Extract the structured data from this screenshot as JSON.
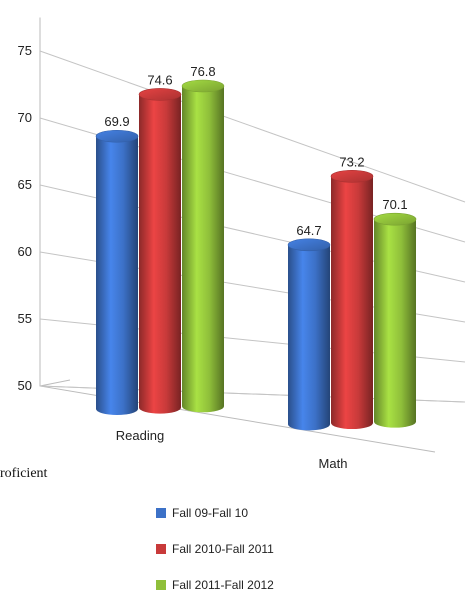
{
  "stray_text": "roficient",
  "chart_data": {
    "type": "bar",
    "title": "",
    "xlabel": "",
    "ylabel": "",
    "categories": [
      "Reading",
      "Math"
    ],
    "ylim": [
      50,
      77
    ],
    "yticks": [
      50,
      55,
      60,
      65,
      70,
      75
    ],
    "series": [
      {
        "name": "Fall 09-Fall 10",
        "values": [
          69.9,
          64.7
        ],
        "color": "#3c71c7"
      },
      {
        "name": "Fall 2010-Fall 2011",
        "values": [
          74.6,
          73.2
        ],
        "color": "#c83a3a"
      },
      {
        "name": "Fall 2011-Fall 2012",
        "values": [
          76.8,
          70.1
        ],
        "color": "#8fbf3a"
      }
    ],
    "grid": true,
    "legend": "bottom",
    "style": "3d-cylinder"
  }
}
